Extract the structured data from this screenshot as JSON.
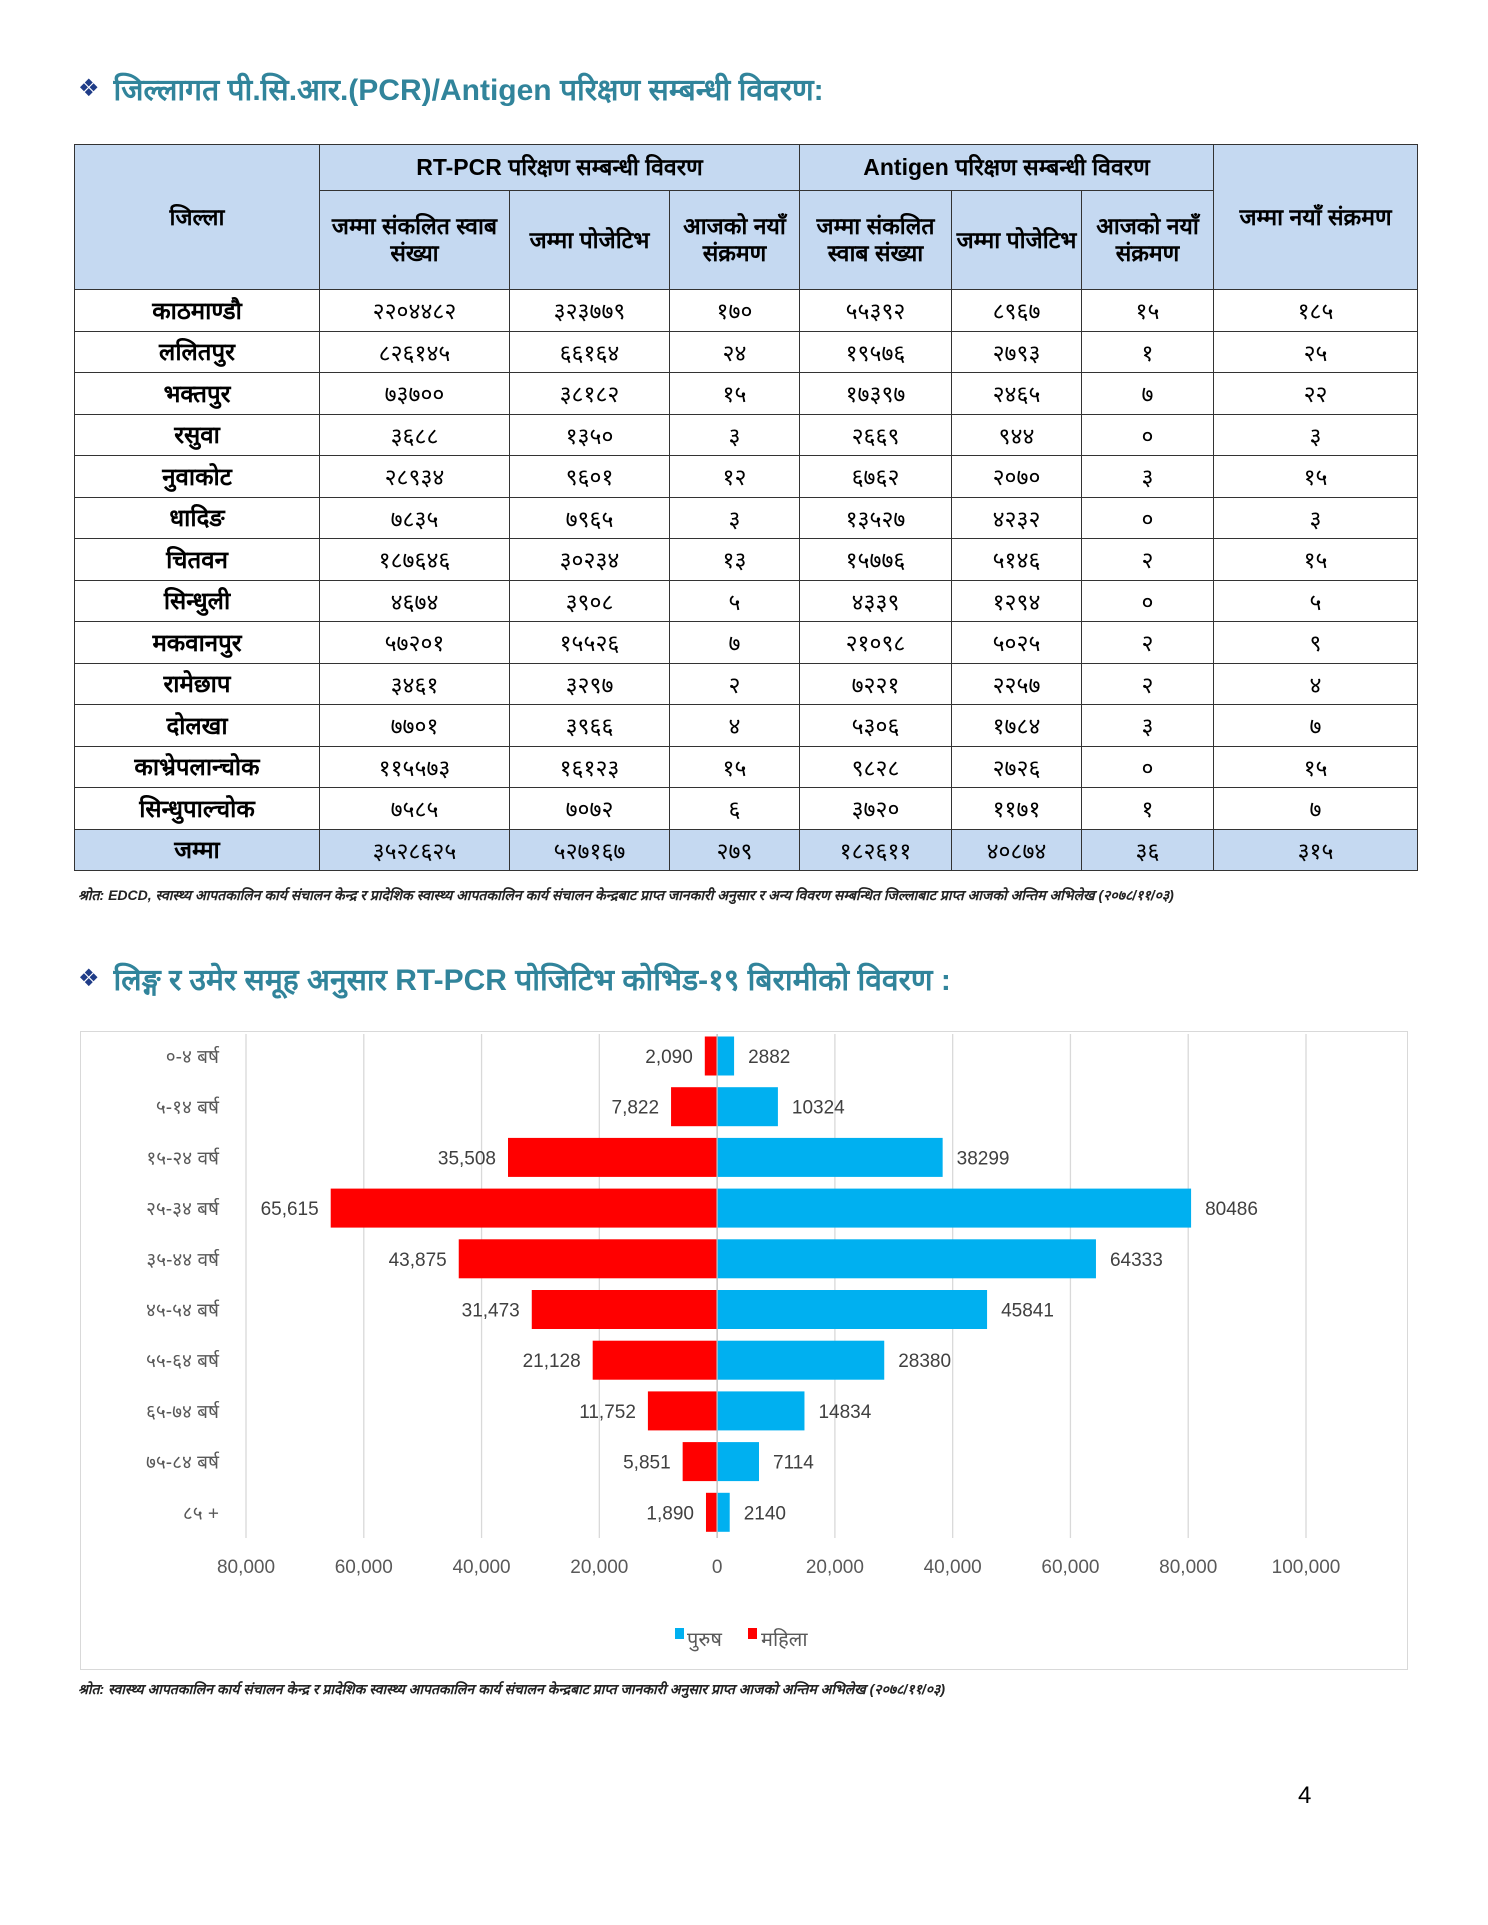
{
  "section1": {
    "bullet_icon": "diamond-bullet-icon",
    "title": "जिल्लागत पी.सि.आर.(PCR)/Antigen परिक्षण सम्बन्धी विवरण:"
  },
  "table": {
    "header": {
      "district": "जिल्ला",
      "rtpcr_group": "RT-PCR परिक्षण सम्बन्धी विवरण",
      "antigen_group": "Antigen परिक्षण सम्बन्धी विवरण",
      "total_new": "जम्मा नयाँ संक्रमण",
      "rt_swab": "जम्मा संकलित स्वाब संख्या",
      "rt_positive": "जम्मा पोजेटिभ",
      "rt_today": "आजको नयाँ संक्रमण",
      "ag_swab": "जम्मा संकलित स्वाब संख्या",
      "ag_positive": "जम्मा पोजेटिभ",
      "ag_today": "आजको नयाँ संक्रमण"
    },
    "rows": [
      [
        "काठमाण्डौ",
        "२२०४४८२",
        "३२३७७९",
        "१७०",
        "५५३९२",
        "८९६७",
        "१५",
        "१८५"
      ],
      [
        "ललितपुर",
        "८२६१४५",
        "६६१६४",
        "२४",
        "१९५७६",
        "२७९३",
        "१",
        "२५"
      ],
      [
        "भक्तपुर",
        "७३७००",
        "३८१८२",
        "१५",
        "१७३९७",
        "२४६५",
        "७",
        "२२"
      ],
      [
        "रसुवा",
        "३६८८",
        "१३५०",
        "३",
        "२६६९",
        "९४४",
        "०",
        "३"
      ],
      [
        "नुवाकोट",
        "२८९३४",
        "९६०१",
        "१२",
        "६७६२",
        "२०७०",
        "३",
        "१५"
      ],
      [
        "धादिङ",
        "७८३५",
        "७९६५",
        "३",
        "१३५२७",
        "४२३२",
        "०",
        "३"
      ],
      [
        "चितवन",
        "१८७६४६",
        "३०२३४",
        "१३",
        "१५७७६",
        "५१४६",
        "२",
        "१५"
      ],
      [
        "सिन्धुली",
        "४६७४",
        "३९०८",
        "५",
        "४३३९",
        "१२९४",
        "०",
        "५"
      ],
      [
        "मकवानपुर",
        "५७२०१",
        "१५५२६",
        "७",
        "२१०९८",
        "५०२५",
        "२",
        "९"
      ],
      [
        "रामेछाप",
        "३४६१",
        "३२९७",
        "२",
        "७२२१",
        "२२५७",
        "२",
        "४"
      ],
      [
        "दोलखा",
        "७७०१",
        "३९६६",
        "४",
        "५३०६",
        "१७८४",
        "३",
        "७"
      ],
      [
        "काभ्रेपलान्चोक",
        "११५५७३",
        "१६१२३",
        "१५",
        "९८२८",
        "२७२६",
        "०",
        "१५"
      ],
      [
        "सिन्धुपाल्चोक",
        "७५८५",
        "७०७२",
        "६",
        "३७२०",
        "११७१",
        "१",
        "७"
      ]
    ],
    "total": [
      "जम्मा",
      "३५२८६२५",
      "५२७१६७",
      "२७९",
      "१८२६११",
      "४०८७४",
      "३६",
      "३१५"
    ],
    "source": "श्रोत: EDCD, स्वास्थ्य आपतकालिन कार्य संचालन केन्द्र र प्रादेशिक स्वास्थ्य आपतकालिन कार्य संचालन केन्द्रबाट प्राप्त जानकारी अनुसार र अन्य विवरण सम्बन्धित जिल्लाबाट प्राप्त आजको अन्तिम अभिलेख (२०७८/११/०३)"
  },
  "section2": {
    "bullet_icon": "diamond-bullet-icon",
    "title": "लिङ्ग र उमेर समूह अनुसार RT-PCR पोजिटिभ  कोभिड-१९ बिरामीको विवरण :"
  },
  "chart_data": {
    "type": "bar",
    "orientation": "horizontal-population-pyramid",
    "categories": [
      "०-४ बर्ष",
      "५-१४ बर्ष",
      "१५-२४ वर्ष",
      "२५-३४ बर्ष",
      "३५-४४ वर्ष",
      "४५-५४ बर्ष",
      "५५-६४ बर्ष",
      "६५-७४ बर्ष",
      "७५-८४ बर्ष",
      "८५ +"
    ],
    "series": [
      {
        "name": "पुरुष",
        "color": "#00B0F0",
        "values": [
          2882,
          10324,
          38299,
          80486,
          64333,
          45841,
          28380,
          14834,
          7114,
          2140
        ],
        "labels": [
          "2882",
          "10324",
          "38299",
          "80486",
          "64333",
          "45841",
          "28380",
          "14834",
          "7114",
          "2140"
        ]
      },
      {
        "name": "महिला",
        "color": "#FF0000",
        "values": [
          2090,
          7822,
          35508,
          65615,
          43875,
          31473,
          21128,
          11752,
          5851,
          1890
        ],
        "labels": [
          "2,090",
          "7,822",
          "35,508",
          "65,615",
          "43,875",
          "31,473",
          "21,128",
          "11,752",
          "5,851",
          "1,890"
        ]
      }
    ],
    "xlim": [
      -80000,
      100000
    ],
    "xticks": [
      -80000,
      -60000,
      -40000,
      -20000,
      0,
      20000,
      40000,
      60000,
      80000,
      100000
    ],
    "xtick_labels": [
      "80,000",
      "60,000",
      "40,000",
      "20,000",
      "0",
      "20,000",
      "40,000",
      "60,000",
      "80,000",
      "100,000"
    ],
    "grid": true,
    "legend": "bottom-center",
    "title": "",
    "xlabel": "",
    "ylabel": ""
  },
  "chart_source": "श्रोत: स्वास्थ्य आपतकालिन कार्य संचालन केन्द्र र प्रादेशिक स्वास्थ्य आपतकालिन कार्य संचालन केन्द्रबाट प्राप्त जानकारी अनुसार प्राप्त आजको अन्तिम अभिलेख (२०७८/११/०३)",
  "page_number": "4"
}
